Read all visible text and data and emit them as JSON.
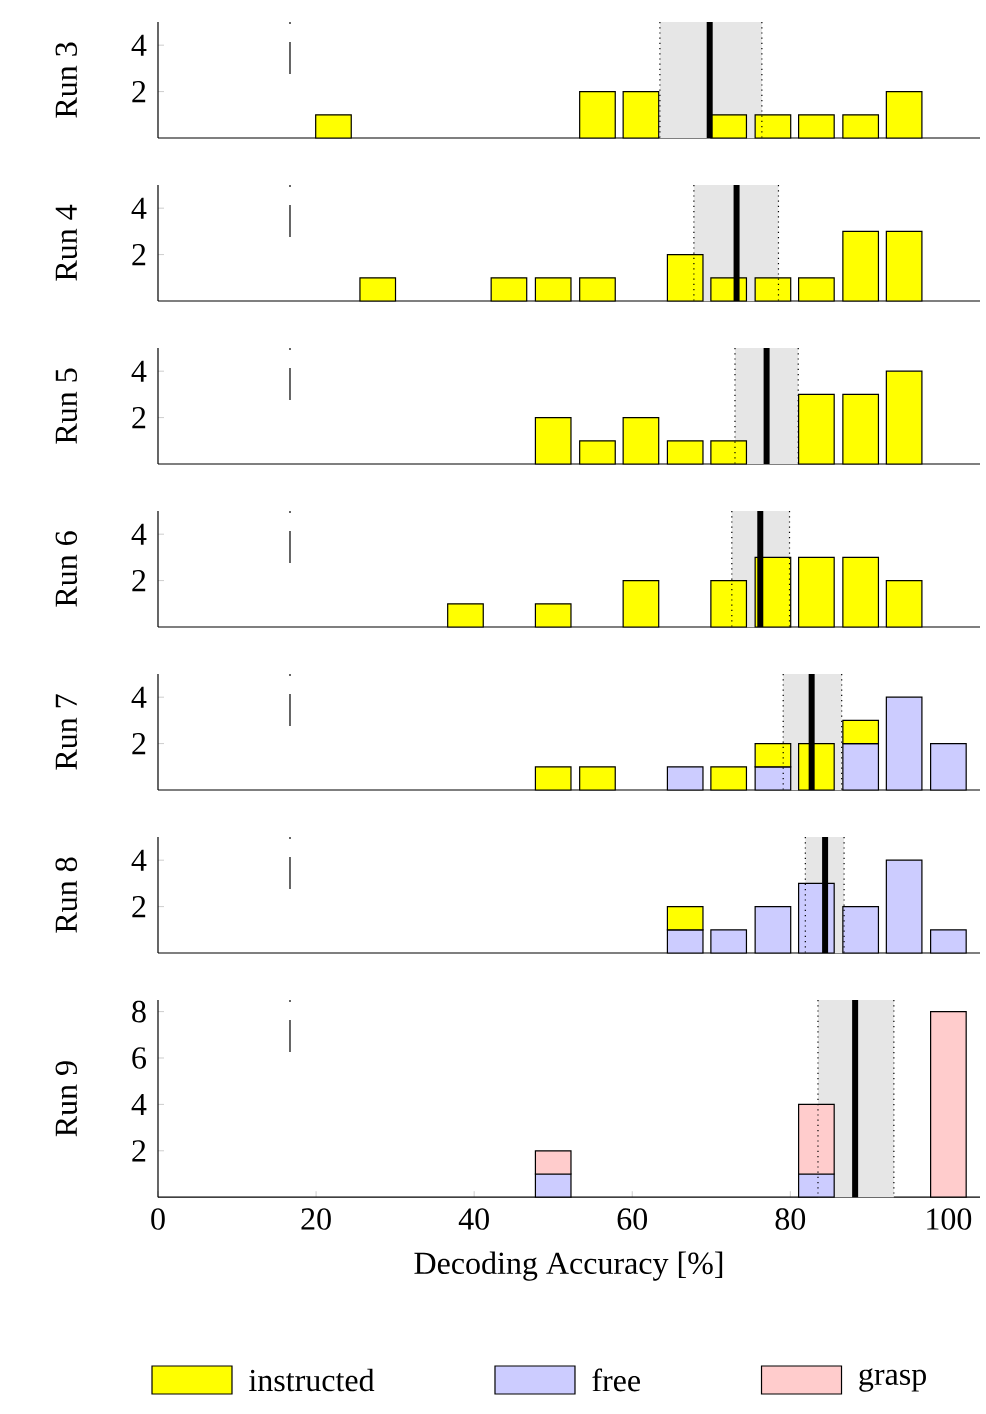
{
  "chart_data": [
    {
      "type": "bar",
      "ylabel": "Run 3",
      "x": [
        22.2,
        55.6,
        61.1,
        72.2,
        77.8,
        83.3,
        88.9,
        94.4
      ],
      "xlim": [
        0,
        104
      ],
      "ylim": [
        0,
        5
      ],
      "yticks": [
        2,
        4
      ],
      "tick_labels": "y",
      "series": [
        {
          "name": "instructed",
          "color": "#ffff00",
          "values": [
            1,
            2,
            2,
            1,
            1,
            1,
            1,
            2
          ]
        }
      ],
      "ref_lines": [
        {
          "axis": "x",
          "value": 16.7,
          "line_style": "dashed",
          "color": "#000000"
        },
        {
          "axis": "x",
          "value": 69.8,
          "line_style": "solid",
          "color": "#000000"
        },
        {
          "axis": "x",
          "value": 63.5,
          "line_style": "dotted",
          "color": "#000000"
        },
        {
          "axis": "x",
          "value": 76.4,
          "line_style": "dotted",
          "color": "#000000"
        }
      ],
      "bands": [
        {
          "axis": "x",
          "from": 63.5,
          "to": 76.4,
          "color": "#e6e6e6"
        }
      ]
    },
    {
      "type": "bar",
      "ylabel": "Run 4",
      "x": [
        27.8,
        44.4,
        50,
        55.6,
        66.7,
        72.2,
        77.8,
        83.3,
        88.9,
        94.4
      ],
      "xlim": [
        0,
        104
      ],
      "ylim": [
        0,
        5
      ],
      "yticks": [
        2,
        4
      ],
      "tick_labels": "y",
      "series": [
        {
          "name": "instructed",
          "color": "#ffff00",
          "values": [
            1,
            1,
            1,
            1,
            2,
            1,
            1,
            1,
            3,
            3
          ]
        }
      ],
      "ref_lines": [
        {
          "axis": "x",
          "value": 16.7,
          "line_style": "dashed",
          "color": "#000000"
        },
        {
          "axis": "x",
          "value": 73.2,
          "line_style": "solid",
          "color": "#000000"
        },
        {
          "axis": "x",
          "value": 67.8,
          "line_style": "dotted",
          "color": "#000000"
        },
        {
          "axis": "x",
          "value": 78.5,
          "line_style": "dotted",
          "color": "#000000"
        }
      ],
      "bands": [
        {
          "axis": "x",
          "from": 67.8,
          "to": 78.5,
          "color": "#e6e6e6"
        }
      ]
    },
    {
      "type": "bar",
      "ylabel": "Run 5",
      "x": [
        50,
        55.6,
        61.1,
        66.7,
        72.2,
        83.3,
        88.9,
        94.4
      ],
      "xlim": [
        0,
        104
      ],
      "ylim": [
        0,
        5
      ],
      "yticks": [
        2,
        4
      ],
      "tick_labels": "y",
      "series": [
        {
          "name": "instructed",
          "color": "#ffff00",
          "values": [
            2,
            1,
            2,
            1,
            1,
            3,
            3,
            4
          ]
        }
      ],
      "ref_lines": [
        {
          "axis": "x",
          "value": 16.7,
          "line_style": "dashed",
          "color": "#000000"
        },
        {
          "axis": "x",
          "value": 77.0,
          "line_style": "solid",
          "color": "#000000"
        },
        {
          "axis": "x",
          "value": 73.0,
          "line_style": "dotted",
          "color": "#000000"
        },
        {
          "axis": "x",
          "value": 81.0,
          "line_style": "dotted",
          "color": "#000000"
        }
      ],
      "bands": [
        {
          "axis": "x",
          "from": 73.0,
          "to": 81.0,
          "color": "#e6e6e6"
        }
      ]
    },
    {
      "type": "bar",
      "ylabel": "Run 6",
      "x": [
        38.9,
        50,
        61.1,
        72.2,
        77.8,
        83.3,
        88.9,
        94.4
      ],
      "xlim": [
        0,
        104
      ],
      "ylim": [
        0,
        5
      ],
      "yticks": [
        2,
        4
      ],
      "tick_labels": "y",
      "series": [
        {
          "name": "instructed",
          "color": "#ffff00",
          "values": [
            1,
            1,
            2,
            2,
            3,
            3,
            3,
            2
          ]
        }
      ],
      "ref_lines": [
        {
          "axis": "x",
          "value": 16.7,
          "line_style": "dashed",
          "color": "#000000"
        },
        {
          "axis": "x",
          "value": 76.2,
          "line_style": "solid",
          "color": "#000000"
        },
        {
          "axis": "x",
          "value": 72.6,
          "line_style": "dotted",
          "color": "#000000"
        },
        {
          "axis": "x",
          "value": 79.9,
          "line_style": "dotted",
          "color": "#000000"
        }
      ],
      "bands": [
        {
          "axis": "x",
          "from": 72.6,
          "to": 79.9,
          "color": "#e6e6e6"
        }
      ]
    },
    {
      "type": "bar",
      "ylabel": "Run 7",
      "stacked": true,
      "x": [
        50,
        55.6,
        66.7,
        72.2,
        77.8,
        83.3,
        88.9,
        94.4,
        100
      ],
      "xlim": [
        0,
        104
      ],
      "ylim": [
        0,
        5
      ],
      "yticks": [
        2,
        4
      ],
      "tick_labels": "y",
      "series": [
        {
          "name": "free",
          "color": "#ccccff",
          "values": [
            null,
            null,
            1,
            null,
            1,
            null,
            2,
            4,
            2
          ]
        },
        {
          "name": "instructed",
          "color": "#ffff00",
          "values": [
            1,
            1,
            null,
            1,
            1,
            2,
            1,
            null,
            null
          ]
        }
      ],
      "ref_lines": [
        {
          "axis": "x",
          "value": 16.7,
          "line_style": "dashed",
          "color": "#000000"
        },
        {
          "axis": "x",
          "value": 82.7,
          "line_style": "solid",
          "color": "#000000"
        },
        {
          "axis": "x",
          "value": 79.1,
          "line_style": "dotted",
          "color": "#000000"
        },
        {
          "axis": "x",
          "value": 86.5,
          "line_style": "dotted",
          "color": "#000000"
        }
      ],
      "bands": [
        {
          "axis": "x",
          "from": 79.1,
          "to": 86.5,
          "color": "#e6e6e6"
        }
      ]
    },
    {
      "type": "bar",
      "ylabel": "Run 8",
      "stacked": true,
      "x": [
        66.7,
        72.2,
        77.8,
        83.3,
        88.9,
        94.4,
        100
      ],
      "xlim": [
        0,
        104
      ],
      "ylim": [
        0,
        5
      ],
      "yticks": [
        2,
        4
      ],
      "tick_labels": "y",
      "series": [
        {
          "name": "free",
          "color": "#ccccff",
          "values": [
            1,
            1,
            2,
            3,
            2,
            4,
            1
          ]
        },
        {
          "name": "instructed",
          "color": "#ffff00",
          "values": [
            1,
            null,
            null,
            null,
            null,
            null,
            null
          ]
        }
      ],
      "ref_lines": [
        {
          "axis": "x",
          "value": 16.7,
          "line_style": "dashed",
          "color": "#000000"
        },
        {
          "axis": "x",
          "value": 84.4,
          "line_style": "solid",
          "color": "#000000"
        },
        {
          "axis": "x",
          "value": 81.9,
          "line_style": "dotted",
          "color": "#000000"
        },
        {
          "axis": "x",
          "value": 86.8,
          "line_style": "dotted",
          "color": "#000000"
        }
      ],
      "bands": [
        {
          "axis": "x",
          "from": 81.9,
          "to": 86.8,
          "color": "#e6e6e6"
        }
      ]
    },
    {
      "type": "bar",
      "ylabel": "Run 9",
      "xlabel": "Decoding Accuracy [%]",
      "stacked": true,
      "legend": "bottom",
      "x": [
        50,
        83.3,
        100
      ],
      "xlim": [
        0,
        104
      ],
      "xticks": [
        0,
        20,
        40,
        60,
        80,
        100
      ],
      "ylim": [
        0,
        8.5
      ],
      "yticks": [
        2,
        4,
        6,
        8
      ],
      "series": [
        {
          "name": "free",
          "color": "#ccccff",
          "values": [
            1,
            1,
            null
          ]
        },
        {
          "name": "grasp",
          "color": "#ffcccc",
          "values": [
            1,
            3,
            8
          ]
        }
      ],
      "ref_lines": [
        {
          "axis": "x",
          "value": 16.7,
          "line_style": "dashed",
          "color": "#000000"
        },
        {
          "axis": "x",
          "value": 88.2,
          "line_style": "solid",
          "color": "#000000"
        },
        {
          "axis": "x",
          "value": 83.5,
          "line_style": "dotted",
          "color": "#000000"
        },
        {
          "axis": "x",
          "value": 93.1,
          "line_style": "dotted",
          "color": "#000000"
        }
      ],
      "bands": [
        {
          "axis": "x",
          "from": 83.5,
          "to": 93.1,
          "color": "#e6e6e6"
        }
      ]
    }
  ]
}
